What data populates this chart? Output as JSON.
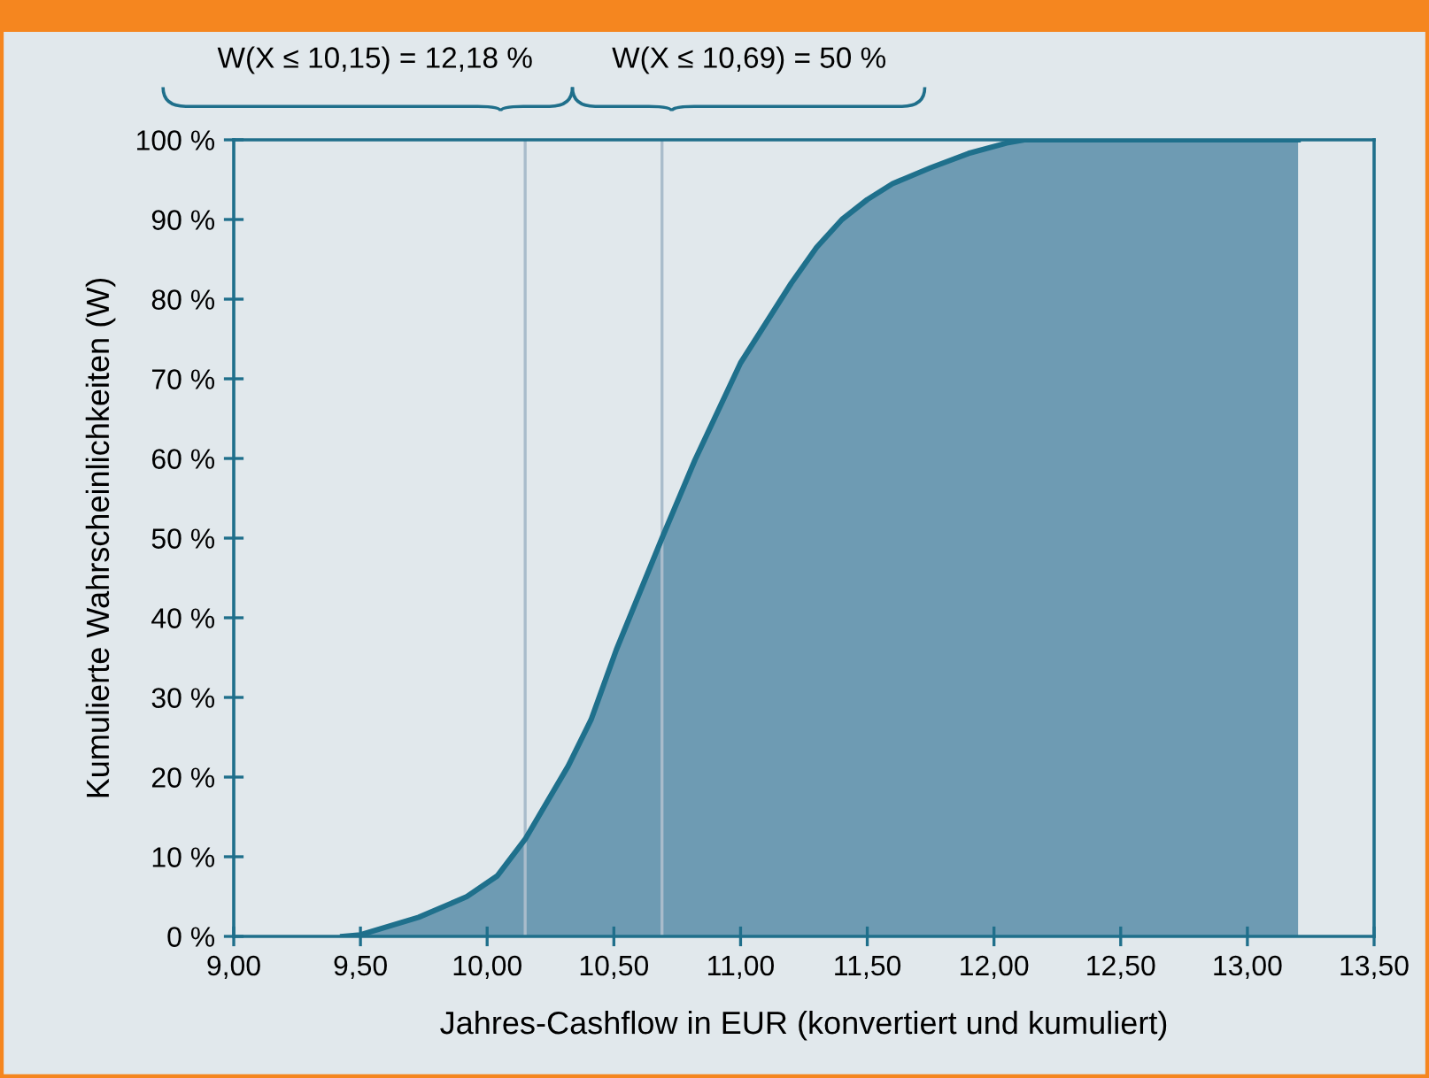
{
  "chart_data": {
    "type": "area",
    "xlabel": "Jahres-Cashflow in EUR (konvertiert und kumuliert)",
    "ylabel": "Kumulierte Wahrscheinlichkeiten (W)",
    "series": [
      {
        "color": "#6e9bb3",
        "x": [
          9.43,
          9.5,
          9.73,
          9.92,
          10.04,
          10.15,
          10.32,
          10.41,
          10.51,
          10.69,
          10.82,
          11.0,
          11.1,
          11.2,
          11.3,
          11.4,
          11.5,
          11.6,
          11.75,
          11.9,
          12.05,
          12.12,
          13.2
        ],
        "values": [
          0,
          0.2,
          2.4,
          5,
          7.6,
          12.2,
          21.4,
          27.2,
          36,
          50,
          59.8,
          72,
          77,
          82,
          86.5,
          90,
          92.5,
          94.5,
          96.5,
          98.3,
          99.6,
          100,
          100
        ]
      }
    ],
    "xlim": [
      9.0,
      13.5
    ],
    "xticks": [
      {
        "value": 9.0,
        "label": "9,00"
      },
      {
        "value": 9.5,
        "label": "9,50"
      },
      {
        "value": 10.0,
        "label": "10,00"
      },
      {
        "value": 10.5,
        "label": "10,50"
      },
      {
        "value": 11.0,
        "label": "11,00"
      },
      {
        "value": 11.5,
        "label": "11,50"
      },
      {
        "value": 12.0,
        "label": "12,00"
      },
      {
        "value": 12.5,
        "label": "12,50"
      },
      {
        "value": 13.0,
        "label": "13,00"
      },
      {
        "value": 13.5,
        "label": "13,50"
      }
    ],
    "ylim": [
      0,
      100
    ],
    "yticks": [
      {
        "value": 0,
        "label": "0 %"
      },
      {
        "value": 10,
        "label": "10 %"
      },
      {
        "value": 20,
        "label": "20 %"
      },
      {
        "value": 30,
        "label": "30 %"
      },
      {
        "value": 40,
        "label": "40 %"
      },
      {
        "value": 50,
        "label": "50 %"
      },
      {
        "value": 60,
        "label": "60 %"
      },
      {
        "value": 70,
        "label": "70 %"
      },
      {
        "value": 80,
        "label": "80 %"
      },
      {
        "value": 90,
        "label": "90 %"
      },
      {
        "value": 100,
        "label": "100 %"
      }
    ],
    "ref_lines": [
      {
        "axis": "x",
        "value": 10.15,
        "color": "#a9bccb"
      },
      {
        "axis": "x",
        "value": 10.69,
        "color": "#a9bccb"
      }
    ],
    "annotations": [
      "W(X ≤ 10,15) = 12,18 %",
      "W(X ≤ 10,69) = 50 %"
    ],
    "grid": false
  }
}
